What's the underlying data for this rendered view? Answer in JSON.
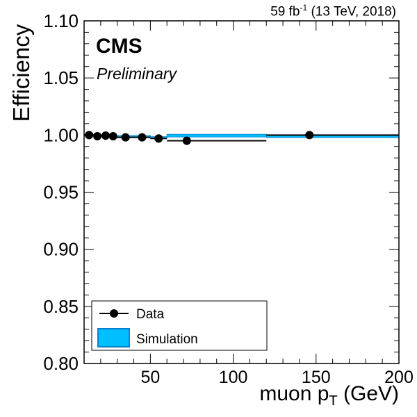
{
  "header": {
    "lumi_value": "59 fb",
    "lumi_exp": "-1",
    "lumi_rest": " (13 TeV, 2018)",
    "experiment": "CMS",
    "status": "Preliminary"
  },
  "chart_data": {
    "type": "scatter",
    "xlabel_main": "muon p",
    "xlabel_sub": "T",
    "xlabel_unit": " (GeV)",
    "ylabel": "Efficiency",
    "xlim": [
      10,
      200
    ],
    "ylim": [
      0.8,
      1.1
    ],
    "x_ticks": [
      50,
      100,
      150,
      200
    ],
    "y_ticks": [
      0.8,
      0.85,
      0.9,
      0.95,
      1.0,
      1.05,
      1.1
    ],
    "y_tick_labels": [
      "0.80",
      "0.85",
      "0.90",
      "0.95",
      "1.00",
      "1.05",
      "1.10"
    ],
    "legend_position": "bottom-left",
    "colors": {
      "data": "#000000",
      "simulation_fill": "#00bfff",
      "simulation_edge": "#0a7fd0"
    },
    "series": [
      {
        "name": "Data",
        "points": [
          {
            "x": 13,
            "xlo": 10,
            "xhi": 16,
            "y": 1.0
          },
          {
            "x": 18,
            "xlo": 16,
            "xhi": 20,
            "y": 0.999
          },
          {
            "x": 23,
            "xlo": 20,
            "xhi": 25,
            "y": 0.9995
          },
          {
            "x": 27.5,
            "xlo": 25,
            "xhi": 30,
            "y": 0.999
          },
          {
            "x": 35,
            "xlo": 30,
            "xhi": 40,
            "y": 0.998
          },
          {
            "x": 45,
            "xlo": 40,
            "xhi": 50,
            "y": 0.998
          },
          {
            "x": 55,
            "xlo": 50,
            "xhi": 60,
            "y": 0.997
          },
          {
            "x": 72,
            "xlo": 60,
            "xhi": 120,
            "y": 0.995
          },
          {
            "x": 146,
            "xlo": 120,
            "xhi": 200,
            "y": 1.0
          }
        ]
      },
      {
        "name": "Simulation",
        "bins": [
          {
            "xlo": 10,
            "xhi": 16,
            "y": 1.0
          },
          {
            "xlo": 16,
            "xhi": 20,
            "y": 0.9995
          },
          {
            "xlo": 20,
            "xhi": 25,
            "y": 0.9995
          },
          {
            "xlo": 25,
            "xhi": 30,
            "y": 0.999
          },
          {
            "xlo": 30,
            "xhi": 40,
            "y": 0.999
          },
          {
            "xlo": 40,
            "xhi": 50,
            "y": 0.999
          },
          {
            "xlo": 50,
            "xhi": 60,
            "y": 0.998
          },
          {
            "xlo": 60,
            "xhi": 120,
            "y": 0.9995
          },
          {
            "xlo": 120,
            "xhi": 200,
            "y": 0.999
          }
        ]
      }
    ]
  }
}
